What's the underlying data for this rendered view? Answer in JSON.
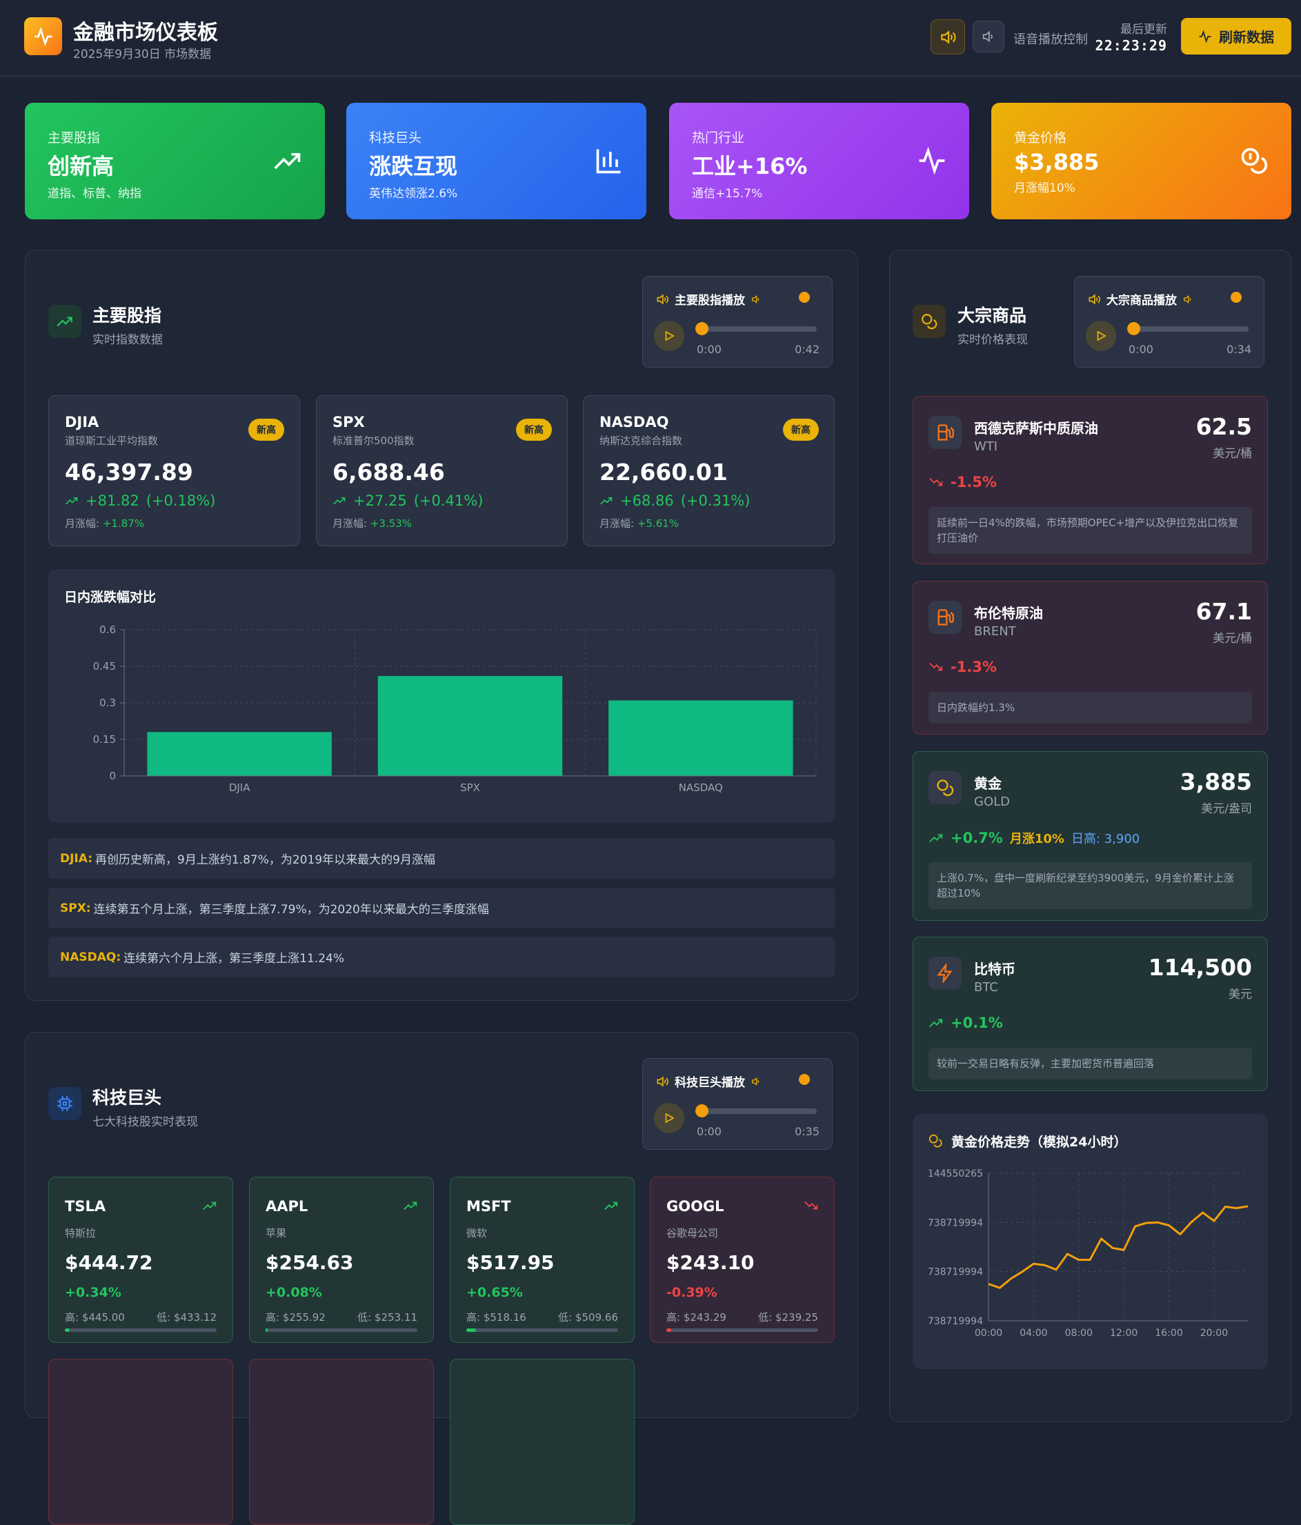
{
  "header": {
    "title": "金融市场仪表板",
    "subtitle": "2025年9月30日 市场数据",
    "voice_label": "语音播放控制",
    "last_update_label": "最后更新",
    "last_update_time": "22:23:29",
    "refresh_label": "刷新数据"
  },
  "top_cards": [
    {
      "label": "主要股指",
      "big": "创新高",
      "sub": "道指、标普、纳指",
      "icon": "trending-up-icon",
      "color": "#22c55e"
    },
    {
      "label": "科技巨头",
      "big": "涨跌互现",
      "sub": "英伟达领涨2.6%",
      "icon": "bar-chart-icon",
      "color": "#3b82f6"
    },
    {
      "label": "热门行业",
      "big": "工业+16%",
      "sub": "通信+15.7%",
      "icon": "activity-icon",
      "color": "#a855f7"
    },
    {
      "label": "黄金价格",
      "big": "$3,885",
      "sub": "月涨幅10%",
      "icon": "coins-icon",
      "color": "#f59e0b"
    }
  ],
  "indices": {
    "title": "主要股指",
    "subtitle": "实时指数数据",
    "player": {
      "label": "主要股指播放",
      "current": "0:00",
      "total": "0:42",
      "progress": 0
    },
    "cards": [
      {
        "symbol": "DJIA",
        "name": "道琼斯工业平均指数",
        "badge": "新高",
        "value": "46,397.89",
        "change": "+81.82",
        "pct": "(+0.18%)",
        "month_label": "月涨幅:",
        "month": "+1.87%"
      },
      {
        "symbol": "SPX",
        "name": "标准普尔500指数",
        "badge": "新高",
        "value": "6,688.46",
        "change": "+27.25",
        "pct": "(+0.41%)",
        "month_label": "月涨幅:",
        "month": "+3.53%"
      },
      {
        "symbol": "NASDAQ",
        "name": "纳斯达克综合指数",
        "badge": "新高",
        "value": "22,660.01",
        "change": "+68.86",
        "pct": "(+0.31%)",
        "month_label": "月涨幅:",
        "month": "+5.61%"
      }
    ],
    "notes": [
      {
        "label": "DJIA:",
        "text": "再创历史新高，9月上涨约1.87%，为2019年以来最大的9月涨幅"
      },
      {
        "label": "SPX:",
        "text": "连续第五个月上涨，第三季度上涨7.79%，为2020年以来最大的三季度涨幅"
      },
      {
        "label": "NASDAQ:",
        "text": "连续第六个月上涨，第三季度上涨11.24%"
      }
    ]
  },
  "chart_data": [
    {
      "type": "bar",
      "title": "日内涨跌幅对比",
      "categories": [
        "DJIA",
        "SPX",
        "NASDAQ"
      ],
      "values": [
        0.18,
        0.41,
        0.31
      ],
      "ylim": [
        0,
        0.6
      ],
      "yticks": [
        "0",
        "0.15",
        "0.3",
        "0.45",
        "0.6"
      ],
      "grid": true,
      "color": "#10b981"
    },
    {
      "type": "line",
      "title": "黄金价格走势（模拟24小时）",
      "x": [
        "00:00",
        "01:00",
        "02:00",
        "03:00",
        "04:00",
        "05:00",
        "06:00",
        "07:00",
        "08:00",
        "09:00",
        "10:00",
        "11:00",
        "12:00",
        "13:00",
        "14:00",
        "15:00",
        "16:00",
        "17:00",
        "18:00",
        "19:00",
        "20:00",
        "21:00",
        "22:00",
        "23:00"
      ],
      "values": [
        3877.5,
        3876.7,
        3878.6,
        3880.0,
        3881.6,
        3881.3,
        3880.4,
        3883.6,
        3882.4,
        3882.4,
        3886.7,
        3884.8,
        3884.4,
        3889.2,
        3889.9,
        3890.0,
        3889.4,
        3887.6,
        3890.1,
        3892.0,
        3890.3,
        3893.2,
        3892.9,
        3893.3
      ],
      "ylim": [
        3870,
        3900
      ],
      "yticks": [
        "144550265",
        "738719994",
        "738719994",
        "738719994"
      ],
      "xticks": [
        "00:00",
        "04:00",
        "08:00",
        "12:00",
        "16:00",
        "20:00"
      ],
      "grid": true,
      "color": "#f59e0b"
    }
  ],
  "tech": {
    "title": "科技巨头",
    "subtitle": "七大科技股实时表现",
    "player": {
      "label": "科技巨头播放",
      "current": "0:00",
      "total": "0:35",
      "progress": 0
    },
    "stocks": [
      {
        "symbol": "TSLA",
        "name": "特斯拉",
        "price": "$444.72",
        "pct": "+0.34%",
        "high": "高: $445.00",
        "low": "低: $433.12",
        "dir": "up",
        "range_pos": 0.03
      },
      {
        "symbol": "AAPL",
        "name": "苹果",
        "price": "$254.63",
        "pct": "+0.08%",
        "high": "高: $255.92",
        "low": "低: $253.11",
        "dir": "up",
        "range_pos": 0.01
      },
      {
        "symbol": "MSFT",
        "name": "微软",
        "price": "$517.95",
        "pct": "+0.65%",
        "high": "高: $518.16",
        "low": "低: $509.66",
        "dir": "up",
        "range_pos": 0.065
      },
      {
        "symbol": "GOOGL",
        "name": "谷歌母公司",
        "price": "$243.10",
        "pct": "-0.39%",
        "high": "高: $243.29",
        "low": "低: $239.25",
        "dir": "down",
        "range_pos": 0.03
      }
    ]
  },
  "commodities": {
    "title": "大宗商品",
    "subtitle": "实时价格表现",
    "player": {
      "label": "大宗商品播放",
      "current": "0:00",
      "total": "0:34",
      "progress": 0
    },
    "items": [
      {
        "name": "西德克萨斯中质原油",
        "symbol": "WTI",
        "value": "62.5",
        "unit": "美元/桶",
        "change": "-1.5%",
        "note": "延续前一日4%的跌幅，市场预期OPEC+增产以及伊拉克出口恢复打压油价"
      },
      {
        "name": "布伦特原油",
        "symbol": "BRENT",
        "value": "67.1",
        "unit": "美元/桶",
        "change": "-1.3%",
        "note": "日内跌幅约1.3%"
      },
      {
        "name": "黄金",
        "symbol": "GOLD",
        "value": "3,885",
        "unit": "美元/盎司",
        "change": "+0.7%",
        "month": "月涨10%",
        "high": "日高: 3,900",
        "note": "上涨0.7%，盘中一度刷新纪录至约3900美元，9月金价累计上涨超过10%"
      },
      {
        "name": "比特币",
        "symbol": "BTC",
        "value": "114,500",
        "unit": "美元",
        "change": "+0.1%",
        "note": "较前一交易日略有反弹，主要加密货币普遍回落"
      }
    ]
  }
}
